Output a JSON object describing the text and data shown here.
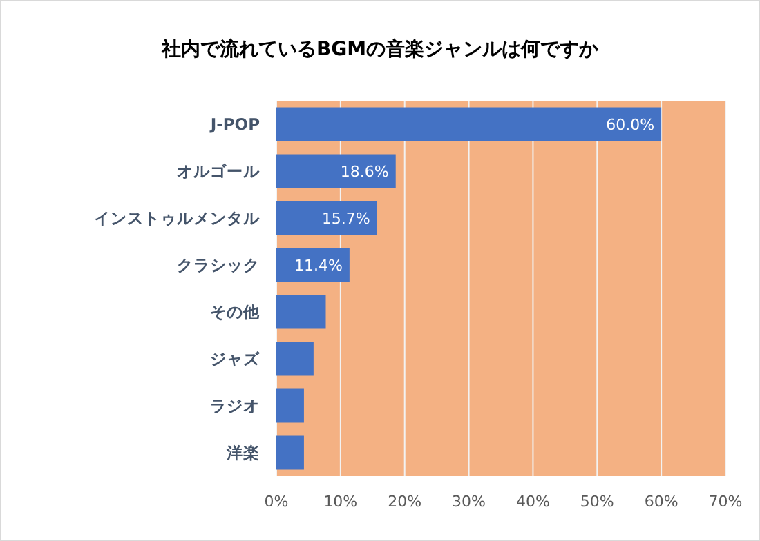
{
  "chart_data": {
    "type": "bar",
    "orientation": "horizontal",
    "title": "社内で流れているBGMの音楽ジャンルは何ですか",
    "categories": [
      "J-POP",
      "オルゴール",
      "インストゥルメンタル",
      "クラシック",
      "その他",
      "ジャズ",
      "ラジオ",
      "洋楽"
    ],
    "values": [
      60.0,
      18.6,
      15.7,
      11.4,
      7.7,
      5.8,
      4.3,
      4.3
    ],
    "value_labels": [
      "60.0%",
      "18.6%",
      "15.7%",
      "11.4%",
      null,
      null,
      null,
      null
    ],
    "color": "#4472c4",
    "xlim": [
      0,
      70
    ],
    "xticks": [
      {
        "value": 0,
        "label": "0%"
      },
      {
        "value": 10,
        "label": "10%"
      },
      {
        "value": 20,
        "label": "20%"
      },
      {
        "value": 30,
        "label": "30%"
      },
      {
        "value": 40,
        "label": "40%"
      },
      {
        "value": 50,
        "label": "50%"
      },
      {
        "value": 60,
        "label": "60%"
      },
      {
        "value": 70,
        "label": "70%"
      }
    ],
    "grid": "x"
  }
}
